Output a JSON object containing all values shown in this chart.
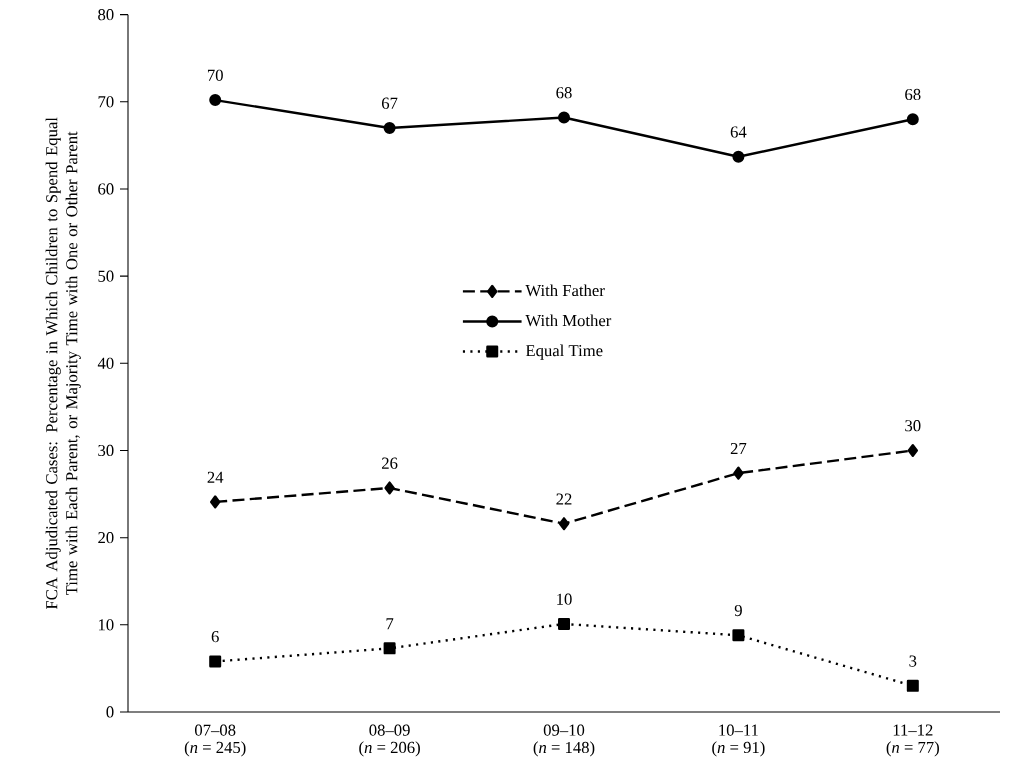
{
  "chart_data": {
    "type": "line",
    "ylabel": "FCA Adjudicated Cases: Percentage in Which Children to Spend Equal Time with Each Parent, or Majority Time with One or Other Parent",
    "categories": [
      "07–08\n(*n* = 245)",
      "08–09\n(*n* = 206)",
      "09–10\n(*n* = 148)",
      "10–11\n(*n* = 91)",
      "11–12\n(*n* = 77)"
    ],
    "ylim": [
      0,
      80
    ],
    "yticks": [
      0,
      10,
      20,
      30,
      40,
      50,
      60,
      70,
      80
    ],
    "legend": "center",
    "series": [
      {
        "name": "With Father",
        "color": "#000000",
        "marker": "diamond",
        "line_style": "dashed",
        "values": [
          24.1,
          25.7,
          21.6,
          27.4,
          30.0
        ],
        "value_labels": [
          "24",
          "26",
          "22",
          "27",
          "30"
        ]
      },
      {
        "name": "With Mother",
        "color": "#000000",
        "marker": "circle",
        "line_style": "solid",
        "values": [
          70.2,
          67.0,
          68.2,
          63.7,
          68.0
        ],
        "value_labels": [
          "70",
          "67",
          "68",
          "64",
          "68"
        ]
      },
      {
        "name": "Equal Time",
        "color": "#000000",
        "marker": "square",
        "line_style": "dotted",
        "values": [
          5.8,
          7.3,
          10.1,
          8.8,
          3.0
        ],
        "value_labels": [
          "6",
          "7",
          "10",
          "9",
          "3"
        ]
      }
    ]
  }
}
